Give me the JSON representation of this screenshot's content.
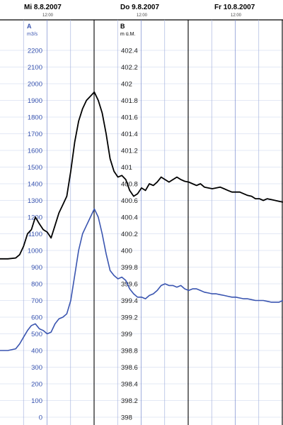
{
  "chart_data": {
    "type": "line",
    "header": {
      "days": [
        {
          "label": "Mi  8.8.2007",
          "time": "12:00"
        },
        {
          "label": "Do  9.8.2007",
          "time": "12:00"
        },
        {
          "label": "Fr  10.8.2007",
          "time": "12:00"
        }
      ]
    },
    "axis_a": {
      "letter": "A",
      "unit": "m3/s",
      "ticks": [
        "2200",
        "2100",
        "2000",
        "1900",
        "1800",
        "1700",
        "1600",
        "1500",
        "1400",
        "1300",
        "1200",
        "1100",
        "1000",
        "900",
        "800",
        "700",
        "600",
        "500",
        "400",
        "300",
        "200",
        "100",
        "0"
      ],
      "range": [
        0,
        2200
      ],
      "color": "#3a55b0"
    },
    "axis_b": {
      "letter": "B",
      "unit": "m ü.M.",
      "ticks": [
        "402.4",
        "402.2",
        "402",
        "401.8",
        "401.6",
        "401.4",
        "401.2",
        "401",
        "400.8",
        "400.6",
        "400.4",
        "400.2",
        "400",
        "399.8",
        "399.6",
        "399.4",
        "399.2",
        "399",
        "398.8",
        "398.6",
        "398.4",
        "398.2",
        "398"
      ],
      "range": [
        398,
        402.4
      ],
      "color": "#000000"
    },
    "x_unit": "hours from Mi 8.8.2007 00:00",
    "x_range": [
      0,
      72
    ],
    "series": [
      {
        "axis": "B",
        "color": "#000000",
        "points": [
          [
            0,
            399.9
          ],
          [
            2,
            399.9
          ],
          [
            4,
            399.91
          ],
          [
            5,
            399.95
          ],
          [
            6,
            400.05
          ],
          [
            7,
            400.2
          ],
          [
            8,
            400.25
          ],
          [
            9,
            400.4
          ],
          [
            10,
            400.32
          ],
          [
            11,
            400.25
          ],
          [
            12,
            400.22
          ],
          [
            13,
            400.15
          ],
          [
            14,
            400.3
          ],
          [
            15,
            400.45
          ],
          [
            16,
            400.55
          ],
          [
            17,
            400.65
          ],
          [
            18,
            400.95
          ],
          [
            19,
            401.3
          ],
          [
            20,
            401.55
          ],
          [
            21,
            401.7
          ],
          [
            22,
            401.8
          ],
          [
            23,
            401.85
          ],
          [
            24,
            401.9
          ],
          [
            25,
            401.8
          ],
          [
            26,
            401.65
          ],
          [
            27,
            401.4
          ],
          [
            28,
            401.1
          ],
          [
            29,
            400.95
          ],
          [
            30,
            400.88
          ],
          [
            31,
            400.9
          ],
          [
            32,
            400.85
          ],
          [
            33,
            400.72
          ],
          [
            34,
            400.65
          ],
          [
            35,
            400.68
          ],
          [
            36,
            400.75
          ],
          [
            37,
            400.72
          ],
          [
            38,
            400.8
          ],
          [
            39,
            400.78
          ],
          [
            40,
            400.82
          ],
          [
            41,
            400.88
          ],
          [
            42,
            400.85
          ],
          [
            43,
            400.82
          ],
          [
            44,
            400.85
          ],
          [
            45,
            400.88
          ],
          [
            46,
            400.85
          ],
          [
            47,
            400.83
          ],
          [
            48,
            400.82
          ],
          [
            49,
            400.8
          ],
          [
            50,
            400.78
          ],
          [
            51,
            400.8
          ],
          [
            52,
            400.76
          ],
          [
            53,
            400.75
          ],
          [
            54,
            400.74
          ],
          [
            55,
            400.75
          ],
          [
            56,
            400.76
          ],
          [
            57,
            400.74
          ],
          [
            58,
            400.72
          ],
          [
            59,
            400.7
          ],
          [
            60,
            400.7
          ],
          [
            61,
            400.7
          ],
          [
            62,
            400.68
          ],
          [
            63,
            400.66
          ],
          [
            64,
            400.65
          ],
          [
            65,
            400.62
          ],
          [
            66,
            400.62
          ],
          [
            67,
            400.6
          ],
          [
            68,
            400.62
          ],
          [
            69,
            400.61
          ],
          [
            70,
            400.6
          ],
          [
            71,
            400.59
          ],
          [
            72,
            400.58
          ]
        ]
      },
      {
        "axis": "A",
        "color": "#3a55b0",
        "points": [
          [
            0,
            400
          ],
          [
            2,
            400
          ],
          [
            4,
            410
          ],
          [
            5,
            440
          ],
          [
            6,
            480
          ],
          [
            7,
            520
          ],
          [
            8,
            550
          ],
          [
            9,
            560
          ],
          [
            10,
            530
          ],
          [
            11,
            520
          ],
          [
            12,
            500
          ],
          [
            13,
            510
          ],
          [
            14,
            560
          ],
          [
            15,
            590
          ],
          [
            16,
            600
          ],
          [
            17,
            620
          ],
          [
            18,
            700
          ],
          [
            19,
            850
          ],
          [
            20,
            1000
          ],
          [
            21,
            1100
          ],
          [
            22,
            1150
          ],
          [
            23,
            1200
          ],
          [
            24,
            1250
          ],
          [
            25,
            1200
          ],
          [
            26,
            1100
          ],
          [
            27,
            980
          ],
          [
            28,
            880
          ],
          [
            29,
            850
          ],
          [
            30,
            830
          ],
          [
            31,
            840
          ],
          [
            32,
            820
          ],
          [
            33,
            770
          ],
          [
            34,
            740
          ],
          [
            35,
            720
          ],
          [
            36,
            720
          ],
          [
            37,
            710
          ],
          [
            38,
            730
          ],
          [
            39,
            740
          ],
          [
            40,
            760
          ],
          [
            41,
            790
          ],
          [
            42,
            800
          ],
          [
            43,
            790
          ],
          [
            44,
            790
          ],
          [
            45,
            780
          ],
          [
            46,
            790
          ],
          [
            47,
            770
          ],
          [
            48,
            760
          ],
          [
            49,
            770
          ],
          [
            50,
            770
          ],
          [
            51,
            760
          ],
          [
            52,
            750
          ],
          [
            53,
            745
          ],
          [
            54,
            740
          ],
          [
            55,
            740
          ],
          [
            56,
            735
          ],
          [
            57,
            730
          ],
          [
            58,
            725
          ],
          [
            59,
            720
          ],
          [
            60,
            720
          ],
          [
            61,
            715
          ],
          [
            62,
            710
          ],
          [
            63,
            710
          ],
          [
            64,
            705
          ],
          [
            65,
            700
          ],
          [
            66,
            700
          ],
          [
            67,
            700
          ],
          [
            68,
            695
          ],
          [
            69,
            690
          ],
          [
            70,
            690
          ],
          [
            71,
            690
          ],
          [
            72,
            700
          ]
        ]
      }
    ]
  }
}
